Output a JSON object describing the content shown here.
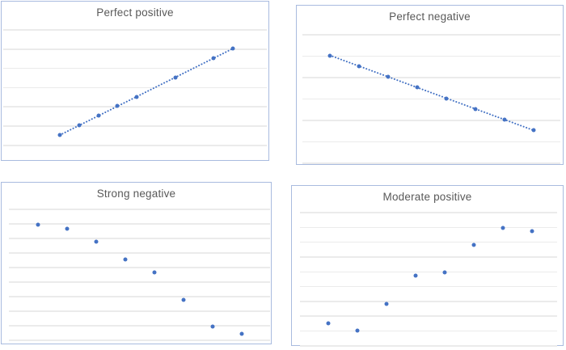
{
  "style": {
    "point_color": "#4472c4",
    "trendline_color": "#4472c4",
    "chart_border_color": "#a9bbdf",
    "gridline_color": "#ebebeb",
    "title_color": "#595959",
    "background": "#ffffff"
  },
  "chart_data": [
    {
      "type": "scatter",
      "title": "Perfect positive",
      "x": [
        1,
        2,
        3,
        4,
        5,
        7,
        9,
        10
      ],
      "y": [
        1,
        2,
        3,
        4,
        5,
        7,
        9,
        10
      ],
      "trendline": "dotted",
      "gridlines_y": [
        0,
        2,
        4,
        6,
        8,
        10,
        12
      ],
      "xlabel": "",
      "ylabel": "",
      "tick_labels": "none",
      "legend": "none",
      "grid": "horizontal-only"
    },
    {
      "type": "scatter",
      "title": "Perfect negative",
      "x": [
        1,
        2,
        3,
        4,
        5,
        6,
        7,
        8
      ],
      "y": [
        6,
        5.5,
        5,
        4.5,
        4,
        3.5,
        3,
        2.5
      ],
      "trendline": "dotted",
      "gridlines_y": [
        1,
        2,
        3,
        4,
        5,
        6,
        7
      ],
      "xlabel": "",
      "ylabel": "",
      "tick_labels": "none",
      "legend": "none",
      "grid": "horizontal-only"
    },
    {
      "type": "scatter",
      "title": "Strong negative",
      "x": [
        1,
        2,
        3,
        4,
        5,
        6,
        7,
        8
      ],
      "y": [
        7.9,
        7.6,
        6.7,
        5.5,
        4.6,
        2.7,
        0.9,
        0.4
      ],
      "trendline": "none",
      "gridlines_y": [
        0,
        1,
        2,
        3,
        4,
        5,
        6,
        7,
        8,
        9
      ],
      "xlabel": "",
      "ylabel": "",
      "tick_labels": "none",
      "legend": "none",
      "grid": "horizontal-only"
    },
    {
      "type": "scatter",
      "title": "Moderate positive",
      "x": [
        1,
        2,
        3,
        4,
        5,
        6,
        7,
        8
      ],
      "y": [
        1.5,
        1.0,
        2.8,
        4.7,
        4.9,
        6.8,
        7.9,
        7.7
      ],
      "trendline": "none",
      "gridlines_y": [
        0,
        1,
        2,
        3,
        4,
        5,
        6,
        7,
        8,
        9
      ],
      "xlabel": "",
      "ylabel": "",
      "tick_labels": "none",
      "legend": "none",
      "grid": "horizontal-only"
    }
  ]
}
